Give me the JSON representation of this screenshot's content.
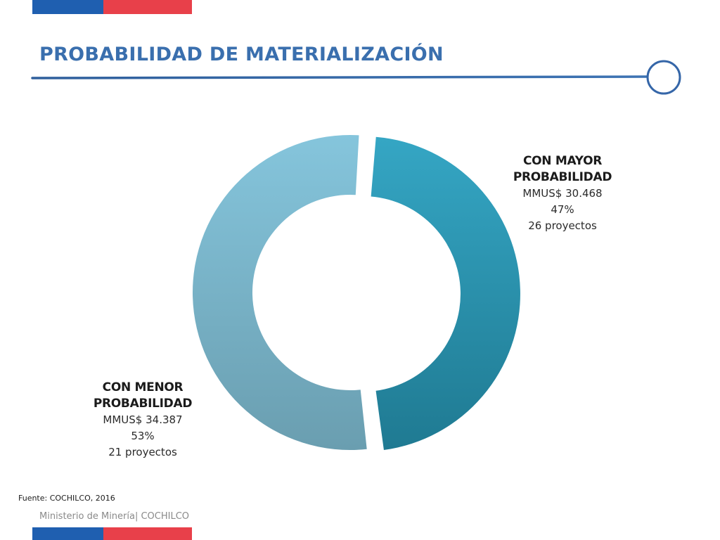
{
  "header": {
    "title": "PROBABILIDAD DE MATERIALIZACIÓN"
  },
  "colors": {
    "flag_blue": "#1f5fb0",
    "flag_red": "#e8404a",
    "title_blue": "#3a6fae",
    "series_mayor": "#2a90ac",
    "series_menor": "#7ab8d0"
  },
  "chart_data": {
    "type": "pie",
    "style": "donut",
    "series": [
      {
        "label_line1": "CON MAYOR",
        "label_line2": "PROBABILIDAD",
        "amount_text": "MMUS$ 30.468",
        "value": 30468,
        "percent": 47,
        "percent_text": "47%",
        "projects_text": "26 proyectos"
      },
      {
        "label_line1": "CON MENOR",
        "label_line2": "PROBABILIDAD",
        "amount_text": "MMUS$ 34.387",
        "value": 34387,
        "percent": 53,
        "percent_text": "53%",
        "projects_text": "21 proyectos"
      }
    ]
  },
  "footer": {
    "source": "Fuente: COCHILCO, 2016",
    "ministry": "Ministerio de Minería| COCHILCO"
  }
}
